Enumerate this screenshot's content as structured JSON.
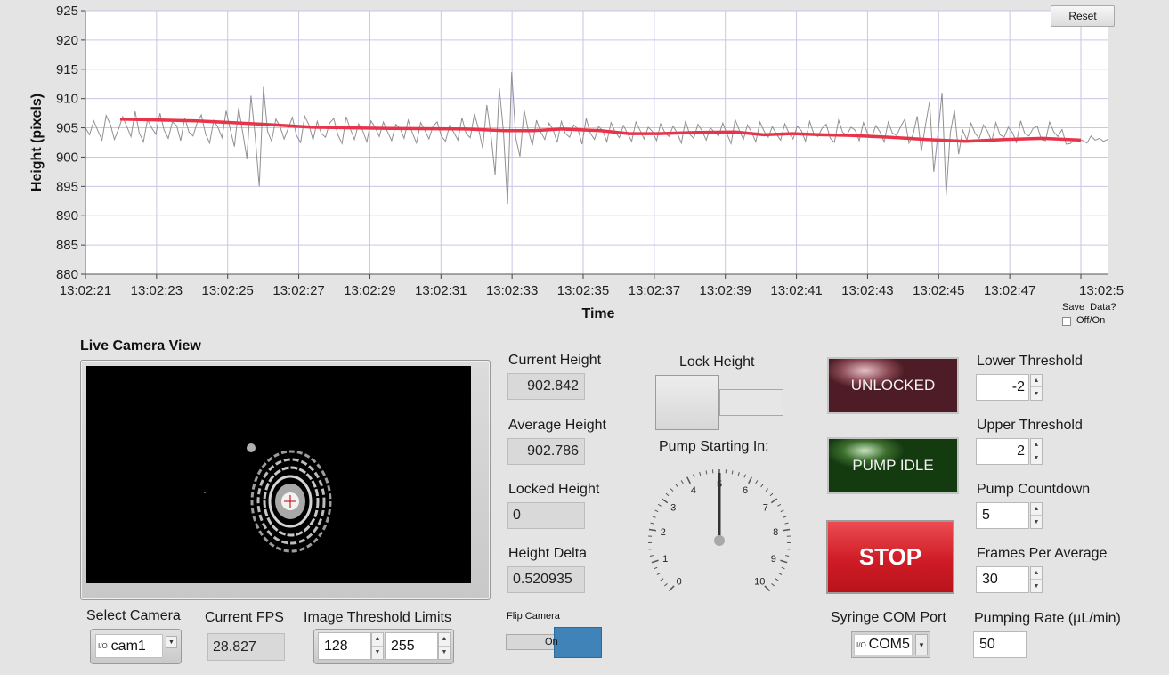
{
  "chart_data": {
    "type": "line",
    "xlabel": "Time",
    "ylabel": "Height (pixels)",
    "ylim": [
      880,
      925
    ],
    "y_ticks": [
      "925",
      "920",
      "915",
      "910",
      "905",
      "900",
      "895",
      "890",
      "885",
      "880"
    ],
    "x_ticks": [
      "13:02:21",
      "13:02:23",
      "13:02:25",
      "13:02:27",
      "13:02:29",
      "13:02:31",
      "13:02:33",
      "13:02:35",
      "13:02:37",
      "13:02:39",
      "13:02:41",
      "13:02:43",
      "13:02:45",
      "13:02:47",
      "13:02:5"
    ],
    "grid": true,
    "series": [
      {
        "color": "#909090",
        "values": [
          905.0,
          903.8,
          906.2,
          904.5,
          902.9,
          907.1,
          905.6,
          903.0,
          904.8,
          906.9,
          905.2,
          903.5,
          907.8,
          904.1,
          902.6,
          906.4,
          905.0,
          903.9,
          907.5,
          904.6,
          903.2,
          906.0,
          905.4,
          902.8,
          906.7,
          904.3,
          903.6,
          905.9,
          907.2,
          904.0,
          902.4,
          906.3,
          905.1,
          903.3,
          907.9,
          904.7,
          901.8,
          908.4,
          904.2,
          899.8,
          910.5,
          903.6,
          895.0,
          912.0,
          904.4,
          902.7,
          906.5,
          905.3,
          903.1,
          904.9,
          906.8,
          903.7,
          902.5,
          907.0,
          905.5,
          902.9,
          906.1,
          904.0,
          903.4,
          905.8,
          906.6,
          903.8,
          902.3,
          906.9,
          904.8,
          903.0,
          905.7,
          904.5,
          902.6,
          906.2,
          905.1,
          903.5,
          906.0,
          904.3,
          902.8,
          905.6,
          904.9,
          903.2,
          906.3,
          904.1,
          902.4,
          905.9,
          904.6,
          903.1,
          905.3,
          906.0,
          903.6,
          902.7,
          905.4,
          904.2,
          902.9,
          906.7,
          904.0,
          903.3,
          907.4,
          904.8,
          901.5,
          908.9,
          903.7,
          897.0,
          911.8,
          904.5,
          892.0,
          914.5,
          903.2,
          900.1,
          908.0,
          904.6,
          902.0,
          906.3,
          904.3,
          903.0,
          905.8,
          904.7,
          902.5,
          906.1,
          904.0,
          903.4,
          905.5,
          904.8,
          902.2,
          906.6,
          904.1,
          903.0,
          905.2,
          904.5,
          902.6,
          905.9,
          904.3,
          903.3,
          905.4,
          904.0,
          902.7,
          906.0,
          904.6,
          903.1,
          905.1,
          904.4,
          902.8,
          905.7,
          904.2,
          903.5,
          905.3,
          904.1,
          902.4,
          906.2,
          903.9,
          903.2,
          905.6,
          904.5,
          902.9,
          905.0,
          904.3,
          903.6,
          905.8,
          904.0,
          902.3,
          906.4,
          904.6,
          903.0,
          905.5,
          904.2,
          902.6,
          906.0,
          904.4,
          903.4,
          905.2,
          903.9,
          902.9,
          905.7,
          904.1,
          903.1,
          905.3,
          904.5,
          902.7,
          906.1,
          904.0,
          903.5,
          904.9,
          905.6,
          903.2,
          902.5,
          906.3,
          904.2,
          903.8,
          905.1,
          904.6,
          902.8,
          905.9,
          904.0,
          903.3,
          905.4,
          904.3,
          902.6,
          906.0,
          904.1,
          903.7,
          905.2,
          906.5,
          902.4,
          903.9,
          907.0,
          901.0,
          905.5,
          909.5,
          897.5,
          903.8,
          911.0,
          893.5,
          904.2,
          908.0,
          900.5,
          904.6,
          902.9,
          905.8,
          904.0,
          903.2,
          905.5,
          904.4,
          902.7,
          905.9,
          903.8,
          903.4,
          905.1,
          904.2,
          902.5,
          906.2,
          904.0,
          903.6,
          904.9,
          905.3,
          903.0,
          902.8,
          906.0,
          904.3,
          903.5,
          904.7,
          902.2,
          902.3,
          903.0,
          903.1,
          902.8,
          902.4,
          903.6,
          902.9,
          903.2,
          902.7,
          903.0
        ],
        "note": ""
      },
      {
        "color": "#e8344a",
        "x": [
          0,
          0.08,
          0.15,
          0.2,
          0.24,
          0.28,
          0.36,
          0.4,
          0.43,
          0.46,
          0.5,
          0.53,
          0.56,
          0.6,
          0.64,
          0.67,
          0.7,
          0.73,
          0.76,
          0.8,
          0.84,
          0.88,
          0.92,
          0.96,
          1.0
        ],
        "values": [
          906.5,
          906.2,
          905.6,
          905.1,
          905.0,
          904.9,
          904.8,
          904.5,
          904.5,
          904.8,
          904.5,
          904.0,
          904.0,
          904.2,
          904.3,
          903.8,
          904.0,
          903.8,
          903.7,
          903.4,
          903.0,
          902.7,
          903.0,
          903.2,
          902.9
        ]
      }
    ]
  },
  "reset_label": "Reset",
  "save_data": {
    "label": "Save  Data?",
    "toggle_label": "Off/On"
  },
  "camera": {
    "title": "Live Camera View"
  },
  "indicators": {
    "current_height_label": "Current Height",
    "current_height": "902.842",
    "average_height_label": "Average Height",
    "average_height": "902.786",
    "locked_height_label": "Locked Height",
    "locked_height": "0",
    "height_delta_label": "Height Delta",
    "height_delta": "0.520935"
  },
  "lock_height_label": "Lock Height",
  "pump_starting_label": "Pump Starting In:",
  "gauge": {
    "value": 5,
    "min": 0,
    "max": 10,
    "ticks": [
      "0",
      "1",
      "2",
      "3",
      "4",
      "5",
      "6",
      "7",
      "8",
      "9",
      "10"
    ]
  },
  "status": {
    "unlocked": "UNLOCKED",
    "pump": "PUMP IDLE",
    "stop": "STOP"
  },
  "controls": {
    "lower_threshold_label": "Lower Threshold",
    "lower_threshold": "-2",
    "upper_threshold_label": "Upper Threshold",
    "upper_threshold": "2",
    "pump_countdown_label": "Pump Countdown",
    "pump_countdown": "5",
    "frames_per_average_label": "Frames Per Average",
    "frames_per_average": "30",
    "pumping_rate_label": "Pumping Rate (µL/min)",
    "pumping_rate": "50",
    "syringe_com_label": "Syringe COM Port",
    "syringe_com": "COM5"
  },
  "bottom": {
    "select_camera_label": "Select Camera",
    "camera": "cam1",
    "current_fps_label": "Current FPS",
    "current_fps": "28.827",
    "threshold_limits_label": "Image Threshold Limits",
    "threshold_low": "128",
    "threshold_high": "255",
    "flip_camera_label": "Flip Camera",
    "flip_state": "On"
  },
  "io_glyph": "I/O"
}
